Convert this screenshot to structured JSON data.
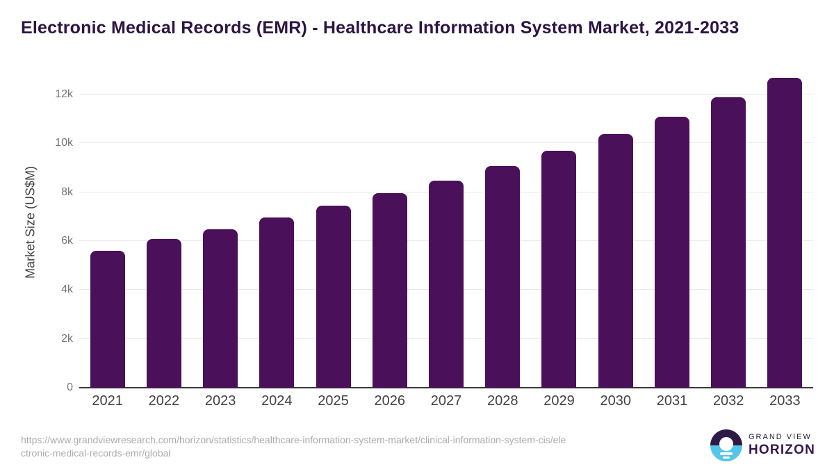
{
  "title": "Electronic Medical Records (EMR) - Healthcare Information System Market, 2021-2033",
  "chart_data": {
    "type": "bar",
    "title": "Electronic Medical Records (EMR) - Healthcare Information System Market, 2021-2033",
    "categories": [
      "2021",
      "2022",
      "2023",
      "2024",
      "2025",
      "2026",
      "2027",
      "2028",
      "2029",
      "2030",
      "2031",
      "2032",
      "2033"
    ],
    "values": [
      5600,
      6080,
      6490,
      6970,
      7450,
      7970,
      8480,
      9080,
      9700,
      10380,
      11100,
      11880,
      12700
    ],
    "xlabel": "",
    "ylabel": "Market Size (US$M)",
    "ylim": [
      0,
      12800
    ],
    "yticks": [
      {
        "value": 0,
        "label": "0"
      },
      {
        "value": 2000,
        "label": "2k"
      },
      {
        "value": 4000,
        "label": "4k"
      },
      {
        "value": 6000,
        "label": "6k"
      },
      {
        "value": 8000,
        "label": "8k"
      },
      {
        "value": 10000,
        "label": "10k"
      },
      {
        "value": 12000,
        "label": "12k"
      }
    ],
    "grid": true,
    "legend": false,
    "bar_color": "#4a1059"
  },
  "colors": {
    "background": "#ffffff",
    "title_text": "#2d1443",
    "bar": "#4a1059",
    "gridline": "#e7e7ea",
    "axis_line": "#3a3a3a",
    "ytick_text": "#757575",
    "xtick_text": "#424242",
    "url_text": "#ababab",
    "logo_purple": "#2e1a47",
    "logo_blue": "#55c5e9",
    "logo_top_text": "#23233f",
    "logo_bottom_text": "#35194e"
  },
  "footer": {
    "url_line1": "https://www.grandviewresearch.com/horizon/statistics/healthcare-information-system-market/clinical-information-system-cis/ele",
    "url_line2": "ctronic-medical-records-emr/global",
    "logo_top": "GRAND VIEW",
    "logo_bottom": "HORIZON"
  }
}
